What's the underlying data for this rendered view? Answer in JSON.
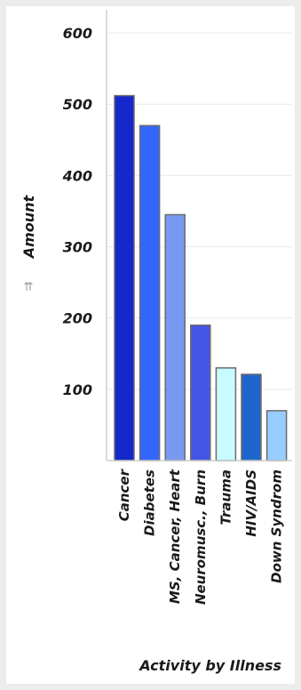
{
  "chart_data": {
    "type": "bar",
    "categories": [
      "Cancer",
      "Diabetes",
      "MS, Cancer, Heart",
      "Neuromusc., Burn",
      "Trauma",
      "HIV/AIDS",
      "Down Syndrom"
    ],
    "values": [
      512,
      470,
      345,
      190,
      130,
      121,
      70
    ],
    "colors": [
      "#1428cc",
      "#3366ff",
      "#7799f2",
      "#4455e6",
      "#c8fbff",
      "#1f66cc",
      "#99ccff"
    ],
    "ylabel": "Amount",
    "xlabel": "Activity by Illness",
    "ylim": [
      0,
      630
    ],
    "yticks": [
      100,
      200,
      300,
      400,
      500,
      600
    ],
    "grid": true
  },
  "icons": {
    "sort": "sort-icon"
  }
}
